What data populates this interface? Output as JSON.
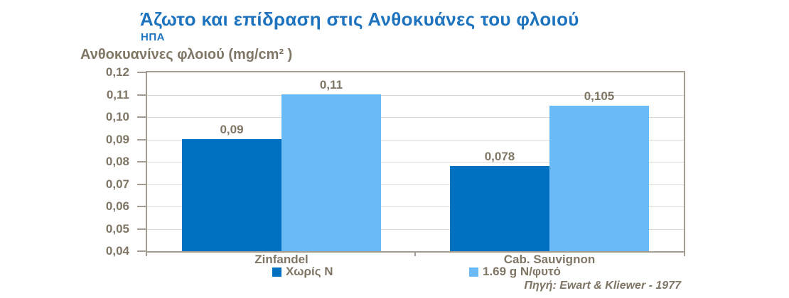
{
  "header": {
    "title": "Άζωτο και επίδραση στις Ανθοκυάνες του φλοιού",
    "subtitle": "ΗΠΑ"
  },
  "chart_data": {
    "type": "bar",
    "title": "Άζωτο και επίδραση στις Ανθοκυάνες του φλοιού",
    "subtitle": "ΗΠΑ",
    "ylabel": "Ανθοκυανίνες φλοιού (mg/cm² )",
    "categories": [
      "Zinfandel",
      "Cab. Sauvignon"
    ],
    "series": [
      {
        "name": "Χωρίς N",
        "color": "#0070C0",
        "values": [
          0.09,
          0.078
        ],
        "value_labels": [
          "0,09",
          "0,078"
        ]
      },
      {
        "name": "1.69 g N/φυτό",
        "color": "#69BAF7",
        "values": [
          0.11,
          0.105
        ],
        "value_labels": [
          "0,11",
          "0,105"
        ]
      }
    ],
    "ylim": [
      0.04,
      0.12
    ],
    "ytick_step": 0.01,
    "ytick_labels_top_to_bottom": [
      "0,12",
      "0,11",
      "0,10",
      "0,09",
      "0,08",
      "0,07",
      "0,06",
      "0,05",
      "0,04"
    ],
    "grid": true,
    "legend_position": "bottom",
    "decimal_separator": ","
  },
  "source": "Πηγή: Ewart & Kliewer - 1977",
  "colors": {
    "title_blue": "#1E73BE",
    "text_gray": "#7F7666",
    "series_no_n": "#0070C0",
    "series_with_n": "#69BAF7",
    "gridline": "#DCD8D1",
    "plot_frame": "#A39C92"
  }
}
